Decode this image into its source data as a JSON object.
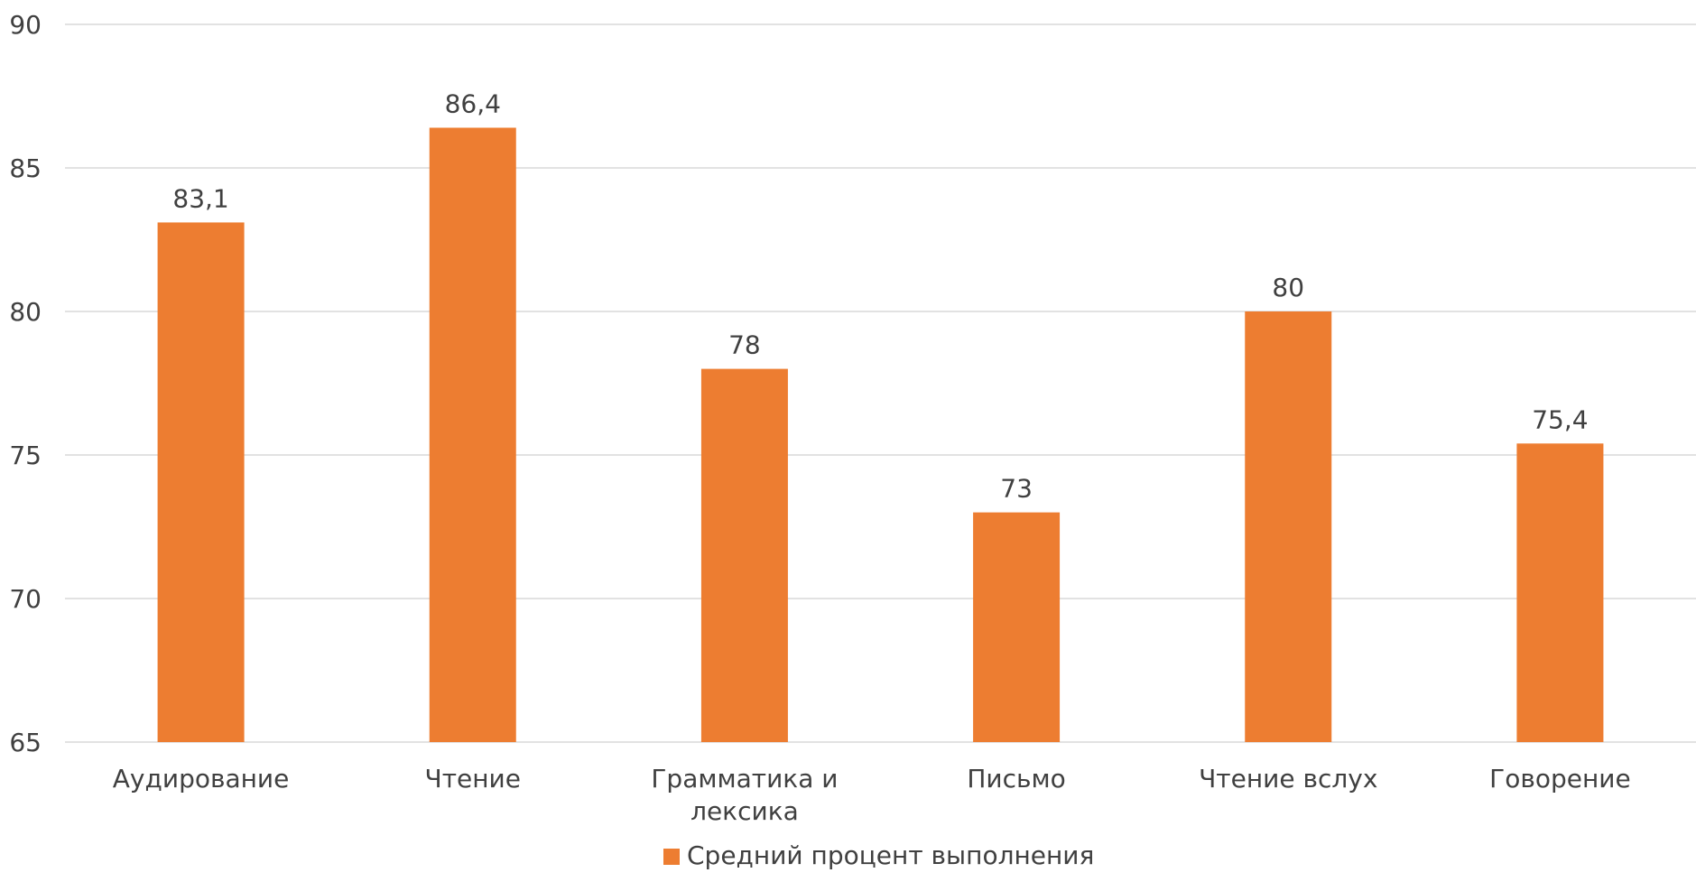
{
  "chart_data": {
    "type": "bar",
    "categories": [
      "Аудирование",
      "Чтение",
      "Грамматика и лексика",
      "Письмо",
      "Чтение вслух",
      "Говорение"
    ],
    "series": [
      {
        "name": "Средний процент выполнения",
        "values": [
          83.1,
          86.4,
          78,
          73,
          80,
          75.4
        ],
        "labels": [
          "83,1",
          "86,4",
          "78",
          "73",
          "80",
          "75,4"
        ],
        "color": "#ED7D31"
      }
    ],
    "ylim": [
      65,
      90
    ],
    "yticks": [
      65,
      70,
      75,
      80,
      85,
      90
    ],
    "title": "",
    "xlabel": "",
    "ylabel": "",
    "grid": true,
    "legend_position": "bottom"
  }
}
